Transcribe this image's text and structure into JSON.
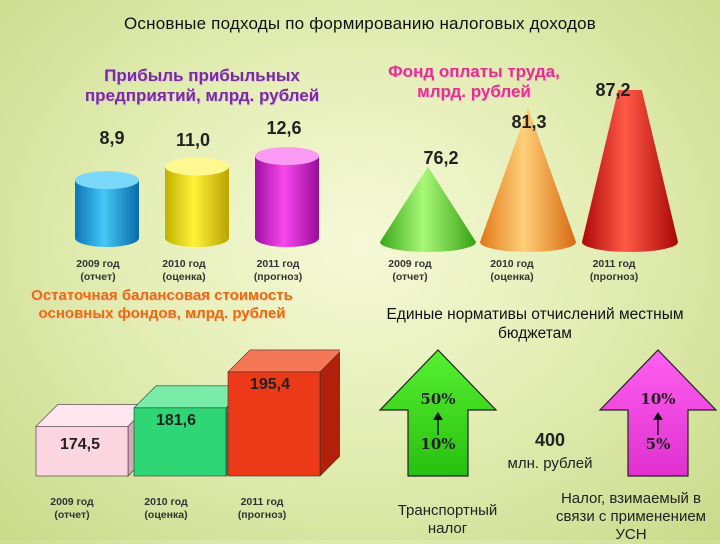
{
  "title": "Основные подходы по формированию налоговых  доходов",
  "chart_data": [
    {
      "type": "bar",
      "title": "Прибыль прибыльных предприятий, млрд. рублей",
      "categories": [
        "2009 год\n(отчет)",
        "2010 год\n(оценка)",
        "2011 год\n(прогноз)"
      ],
      "values": [
        8.9,
        11.0,
        12.6
      ],
      "value_labels": [
        "8,9",
        "11,0",
        "12,6"
      ],
      "colors": [
        "#18a8e0",
        "#f0e020",
        "#e020d8"
      ]
    },
    {
      "type": "bar",
      "title": "Фонд оплаты труда, млрд. рублей",
      "categories": [
        "2009 год\n(отчет)",
        "2010 год\n(оценка)",
        "2011 год\n(прогноз)"
      ],
      "values": [
        76.2,
        81.3,
        87.2
      ],
      "value_labels": [
        "76,2",
        "81,3",
        "87,2"
      ],
      "colors": [
        "#6cd838",
        "#f5a040",
        "#e41818"
      ]
    },
    {
      "type": "bar",
      "title": "Остаточная балансовая стоимость основных фондов, млрд. рублей",
      "categories": [
        "2009 год\n(отчет)",
        "2010 год\n(оценка)",
        "2011 год\n(прогноз)"
      ],
      "values": [
        174.5,
        181.6,
        195.4
      ],
      "value_labels": [
        "174,5",
        "181,6",
        "195,4"
      ],
      "colors": [
        "#fad0dc",
        "#30d678",
        "#e83818"
      ]
    }
  ],
  "norms": {
    "title": "Единые нормативы отчислений местным бюджетам",
    "amount": "400",
    "amount_unit": "млн. рублей",
    "left": {
      "from": "10%",
      "to": "50%",
      "label": "Транспортный налог",
      "color": "#3ad820"
    },
    "right": {
      "from": "5%",
      "to": "10%",
      "label": "Налог, взимаемый в связи с применением УСН",
      "color": "#f040d8"
    }
  }
}
